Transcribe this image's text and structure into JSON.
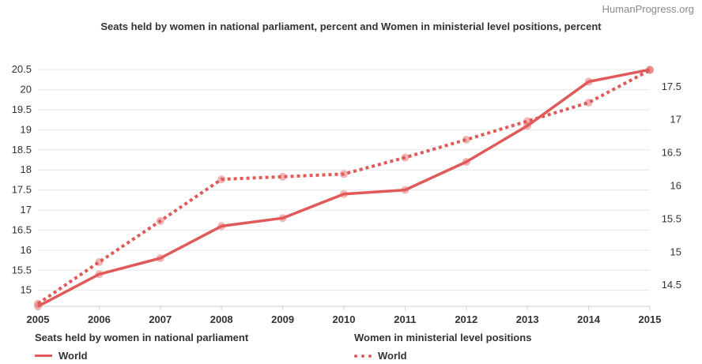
{
  "source": "HumanProgress.org",
  "chart_data": {
    "type": "line",
    "title": "Seats held by women in national parliament, percent and Women in ministerial level positions, percent",
    "x": [
      "2005",
      "2006",
      "2007",
      "2008",
      "2009",
      "2010",
      "2011",
      "2012",
      "2013",
      "2014",
      "2015"
    ],
    "axes": {
      "left": {
        "ylim": [
          14.6,
          20.7
        ],
        "ticks": [
          "15",
          "15.5",
          "16",
          "16.5",
          "17",
          "17.5",
          "18",
          "18.5",
          "19",
          "19.5",
          "20",
          "20.5"
        ]
      },
      "right": {
        "ylim": [
          14.18,
          17.88
        ],
        "ticks": [
          "14.5",
          "15",
          "15.5",
          "16",
          "16.5",
          "17",
          "17.5"
        ]
      }
    },
    "series": [
      {
        "name": "Seats held by women in national parliament",
        "legend_label": "World",
        "axis": "left",
        "style": "solid",
        "color": "#e05a5a",
        "values": [
          14.6,
          15.4,
          15.8,
          16.6,
          16.8,
          17.4,
          17.5,
          18.2,
          19.1,
          20.2,
          20.5
        ]
      },
      {
        "name": "Women in ministerial level positions",
        "legend_label": "World",
        "axis": "right",
        "style": "dotted",
        "color": "#e05a5a",
        "values": [
          14.22,
          14.85,
          15.47,
          16.1,
          16.14,
          16.18,
          16.43,
          16.7,
          16.98,
          17.26,
          17.75
        ]
      }
    ],
    "grid": true,
    "legend_position": "bottom-left"
  }
}
